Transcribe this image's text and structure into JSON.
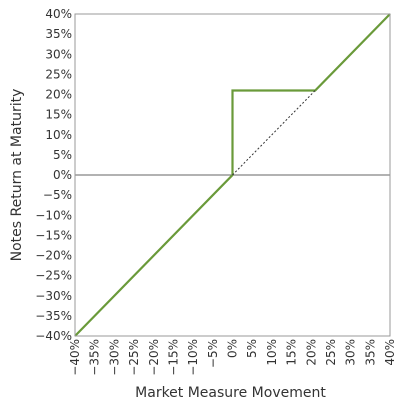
{
  "chart_data": {
    "type": "line",
    "xlabel": "Market Measure Movement",
    "ylabel": "Notes Return at Maturity",
    "xlim": [
      -40,
      40
    ],
    "ylim": [
      -40,
      40
    ],
    "x_ticks": [
      -40,
      -35,
      -30,
      -25,
      -20,
      -15,
      -10,
      -5,
      0,
      5,
      10,
      15,
      20,
      25,
      30,
      35,
      40
    ],
    "y_ticks": [
      40,
      35,
      30,
      25,
      20,
      15,
      10,
      5,
      0,
      -5,
      -10,
      -15,
      -20,
      -25,
      -30,
      -35,
      -40
    ],
    "x_tick_labels": [
      "−40%",
      "−35%",
      "−30%",
      "−25%",
      "−20%",
      "−15%",
      "−10%",
      "−5%",
      "0%",
      "5%",
      "10%",
      "15%",
      "20%",
      "25%",
      "30%",
      "35%",
      "40%"
    ],
    "y_tick_labels": [
      "40%",
      "35%",
      "30%",
      "25%",
      "20%",
      "15%",
      "10%",
      "5%",
      "0%",
      "−5%",
      "−10%",
      "−15%",
      "−20%",
      "−25%",
      "−30%",
      "−35%",
      "−40%"
    ],
    "grid": false,
    "series": [
      {
        "style": "solid",
        "color": "#6a9a3a",
        "x": [
          -40,
          0,
          0,
          21,
          40
        ],
        "y": [
          -40,
          0,
          21,
          21,
          40
        ]
      },
      {
        "style": "dotted",
        "color": "#333333",
        "x": [
          0,
          21
        ],
        "y": [
          0,
          21
        ]
      }
    ],
    "reference_lines": [
      {
        "axis": "y",
        "value": 0,
        "color": "#666666"
      }
    ]
  }
}
